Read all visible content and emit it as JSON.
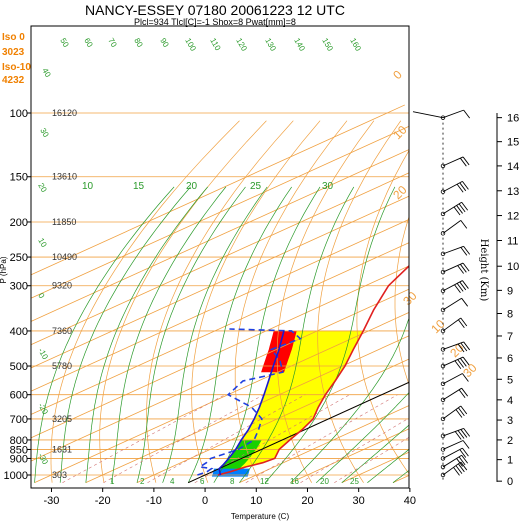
{
  "chart_data": {
    "type": "skew-t",
    "title": "NANCY-ESSEY 07180 20061223 12 UTC",
    "subtitle": "Plcl=934 Tlcl[C]=-1 Shox=8 Pwat[mm]=8",
    "xlabel": "Temperature (C)",
    "ylabel": "P (hPa)",
    "height_axis_label": "Height (Km)",
    "x_ticks": [
      "-30",
      "-20",
      "-10",
      "0",
      "10",
      "20",
      "30",
      "40"
    ],
    "x_tick_values": [
      -30,
      -20,
      -10,
      0,
      10,
      20,
      30,
      40
    ],
    "xlim": [
      -34,
      48
    ],
    "ylim": [
      1050,
      100
    ],
    "y_ticks": [
      "100",
      "150",
      "200",
      "250",
      "300",
      "400",
      "500",
      "600",
      "700",
      "800",
      "850",
      "900",
      "1000"
    ],
    "y_tick_values": [
      100,
      150,
      200,
      250,
      300,
      400,
      500,
      600,
      700,
      800,
      850,
      900,
      1000
    ],
    "height_ticks": [
      "0",
      "1",
      "2",
      "3",
      "4",
      "5",
      "6",
      "7",
      "8",
      "9",
      "10",
      "11",
      "12",
      "13",
      "14",
      "15",
      "16"
    ],
    "height_km_pressure": [
      1040,
      907,
      800,
      705,
      620,
      544,
      475,
      413,
      358,
      309,
      265,
      225,
      192,
      164,
      140,
      120,
      103
    ],
    "iso_info": [
      {
        "label": "Iso 0",
        "color": "#f08000"
      },
      {
        "label": "3023",
        "color": "#f08000"
      },
      {
        "label": "Iso-10",
        "color": "#f08000"
      },
      {
        "label": "4232",
        "color": "#f08000"
      }
    ],
    "geopotential_labels": [
      {
        "p": 100,
        "text": "16120"
      },
      {
        "p": 150,
        "text": "13610"
      },
      {
        "p": 200,
        "text": "11850"
      },
      {
        "p": 250,
        "text": "10490"
      },
      {
        "p": 300,
        "text": "9320"
      },
      {
        "p": 400,
        "text": "7360"
      },
      {
        "p": 500,
        "text": "5780"
      },
      {
        "p": 700,
        "text": "3205"
      },
      {
        "p": 850,
        "text": "1631"
      },
      {
        "p": 1000,
        "text": "303"
      }
    ],
    "isotherm_labels": [
      "0",
      "10",
      "20",
      "30",
      "10",
      "20",
      "30"
    ],
    "dry_adiabat_labels": [
      "50",
      "60",
      "70",
      "80",
      "90",
      "100",
      "110",
      "120",
      "130",
      "140",
      "150",
      "160",
      "40",
      "30",
      "20",
      "10",
      "0",
      "-10",
      "-20",
      "-30"
    ],
    "moist_adiabat_labels": [
      "10",
      "15",
      "20",
      "25",
      "30"
    ],
    "mixing_ratio_labels": [
      "1",
      "2",
      "4",
      "6",
      "8",
      "12",
      "16",
      "20",
      "25"
    ],
    "zero_isotherm_label": "0",
    "series": [
      {
        "name": "temperature",
        "color": "#e02020",
        "points": [
          {
            "p": 1000,
            "t": 2.5
          },
          {
            "p": 980,
            "t": 3.5
          },
          {
            "p": 950,
            "t": 4.5
          },
          {
            "p": 925,
            "t": 6.0
          },
          {
            "p": 900,
            "t": 6.5
          },
          {
            "p": 850,
            "t": 3.5
          },
          {
            "p": 800,
            "t": 1.5
          },
          {
            "p": 750,
            "t": -0.5
          },
          {
            "p": 700,
            "t": -3.0
          },
          {
            "p": 650,
            "t": -7.0
          },
          {
            "p": 600,
            "t": -11.0
          },
          {
            "p": 550,
            "t": -15.0
          },
          {
            "p": 500,
            "t": -19.5
          },
          {
            "p": 450,
            "t": -25.0
          },
          {
            "p": 400,
            "t": -31.0
          },
          {
            "p": 350,
            "t": -38.0
          },
          {
            "p": 300,
            "t": -45.5
          },
          {
            "p": 250,
            "t": -52.0
          },
          {
            "p": 220,
            "t": -58.0
          },
          {
            "p": 205,
            "t": -59.5
          },
          {
            "p": 190,
            "t": -59.5
          },
          {
            "p": 170,
            "t": -58.5
          },
          {
            "p": 150,
            "t": -56.0
          },
          {
            "p": 100,
            "t": -58.0
          }
        ]
      },
      {
        "name": "dewpoint",
        "color": "#2040e0",
        "points": [
          {
            "p": 1000,
            "t": -1.5
          },
          {
            "p": 980,
            "t": -1.0
          },
          {
            "p": 960,
            "t": -1.5
          },
          {
            "p": 950,
            "t": -4.5
          },
          {
            "p": 925,
            "t": -5.0
          },
          {
            "p": 900,
            "t": -6.0
          },
          {
            "p": 850,
            "t": -4.5
          },
          {
            "p": 800,
            "t": -5.5
          },
          {
            "p": 750,
            "t": -9.0
          },
          {
            "p": 700,
            "t": -13.0
          },
          {
            "p": 650,
            "t": -20.0
          },
          {
            "p": 600,
            "t": -30.0
          },
          {
            "p": 550,
            "t": -33.0
          },
          {
            "p": 520,
            "t": -29.0
          },
          {
            "p": 480,
            "t": -35.0
          },
          {
            "p": 450,
            "t": -41.0
          },
          {
            "p": 420,
            "t": -40.0
          },
          {
            "p": 400,
            "t": -45.0
          },
          {
            "p": 395,
            "t": -58.0
          }
        ]
      },
      {
        "name": "parcel",
        "color": "#1a1acc",
        "points": [
          {
            "p": 1000,
            "t": 3.0
          },
          {
            "p": 960,
            "t": 0.0
          },
          {
            "p": 934,
            "t": -1.0
          },
          {
            "p": 900,
            "t": -2.5
          },
          {
            "p": 850,
            "t": -5.0
          },
          {
            "p": 800,
            "t": -8.0
          },
          {
            "p": 750,
            "t": -11.0
          },
          {
            "p": 700,
            "t": -14.5
          },
          {
            "p": 650,
            "t": -18.5
          },
          {
            "p": 600,
            "t": -23.0
          },
          {
            "p": 550,
            "t": -28.0
          },
          {
            "p": 500,
            "t": -33.5
          },
          {
            "p": 450,
            "t": -39.5
          },
          {
            "p": 400,
            "t": -46.5
          }
        ]
      }
    ],
    "shading": {
      "cape": "#ffff00",
      "cin_low": "#00cc00",
      "cin_warm": "#ff0000",
      "surface": "#0080ff"
    },
    "colors": {
      "isotherm": "#f0a040",
      "isobar": "#f0a040",
      "dry_adiabat": "#f0a040",
      "moist_adiabat": "#2a9a2a",
      "mixing_ratio": "#2a9a2a",
      "zero_line": "#000000",
      "frame": "#000000"
    },
    "grid": true,
    "wind_barbs": "right"
  }
}
